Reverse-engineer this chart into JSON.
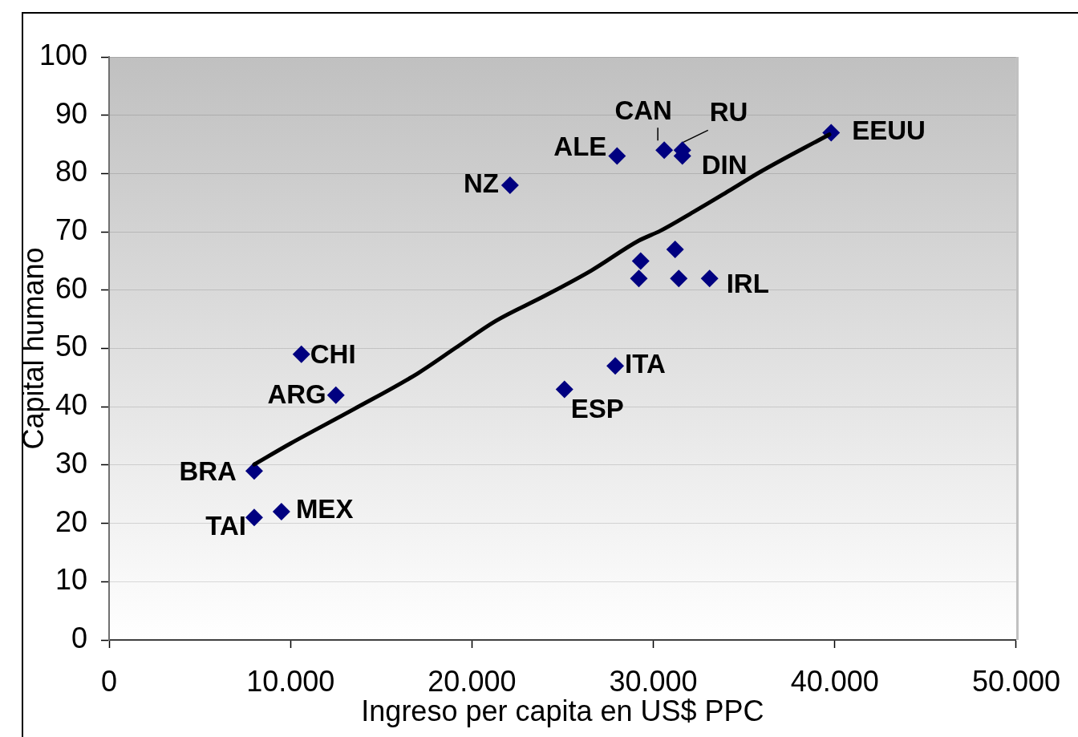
{
  "chart_data": {
    "type": "scatter",
    "xlabel": "Ingreso per capita en US$ PPC",
    "ylabel": "Capital humano",
    "xlim": [
      0,
      50000
    ],
    "xticks": [
      0,
      {
        "value": 10000,
        "label": "10.000"
      },
      {
        "value": 20000,
        "label": "20.000"
      },
      {
        "value": 30000,
        "label": "30.000"
      },
      {
        "value": 40000,
        "label": "40.000"
      },
      {
        "value": 50000,
        "label": "50.000"
      }
    ],
    "ylim": [
      0,
      100
    ],
    "yticks": [
      0,
      10,
      20,
      30,
      40,
      50,
      60,
      70,
      80,
      90,
      100
    ],
    "grid": "y",
    "marker": "diamond",
    "series": [
      {
        "color": "#000080",
        "x": [
          8000,
          8000,
          9500,
          10600,
          12500,
          22100,
          28000,
          30600,
          31600,
          31600,
          39800,
          29300,
          29200,
          31200,
          31400,
          33100,
          27900,
          25100
        ],
        "values": [
          29,
          21,
          22,
          49,
          42,
          78,
          83,
          84,
          84,
          83,
          87,
          65,
          62,
          67,
          62,
          62,
          47,
          43
        ]
      },
      {
        "type": "line",
        "color": "#000000",
        "marker": "none",
        "x": [
          8000,
          10000,
          13500,
          17000,
          19100,
          21300,
          24000,
          26600,
          29200,
          30400,
          32200,
          34300,
          35900,
          39700
        ],
        "values": [
          30.1,
          33.7,
          39.6,
          45.7,
          50.1,
          54.7,
          59,
          63.4,
          68.5,
          70.2,
          73.4,
          77.3,
          80.3,
          86.7
        ]
      }
    ],
    "annotations": [
      {
        "text": "BRA",
        "x": 8000,
        "y": 29
      },
      {
        "text": "TAI",
        "x": 8000,
        "y": 21
      },
      {
        "text": "MEX",
        "x": 9500,
        "y": 22
      },
      {
        "text": "CHI",
        "x": 10600,
        "y": 49
      },
      {
        "text": "ARG",
        "x": 12500,
        "y": 42
      },
      {
        "text": "NZ",
        "x": 22100,
        "y": 78
      },
      {
        "text": "ALE",
        "x": 28000,
        "y": 83
      },
      {
        "text": "CAN",
        "x": 30600,
        "y": 84
      },
      {
        "text": "RU",
        "x": 31600,
        "y": 84
      },
      {
        "text": "DIN",
        "x": 31600,
        "y": 83
      },
      {
        "text": "EEUU",
        "x": 39800,
        "y": 87
      },
      {
        "text": "IRL",
        "x": 33100,
        "y": 62
      },
      {
        "text": "ITA",
        "x": 27900,
        "y": 47
      },
      {
        "text": "ESP",
        "x": 25100,
        "y": 43
      }
    ]
  }
}
